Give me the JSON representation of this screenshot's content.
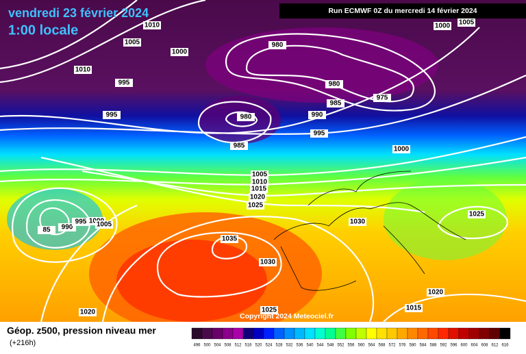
{
  "header": {
    "date": "vendredi 23 février 2024",
    "time": "1:00 locale",
    "run": "Run ECMWF 0Z du mercredi 14 février 2024"
  },
  "isobar_labels": [
    "1010",
    "1005",
    "1000",
    "1010",
    "995",
    "995",
    "980",
    "980",
    "975",
    "985",
    "980",
    "990",
    "995",
    "985",
    "1000",
    "1000",
    "1005",
    "1005",
    "1010",
    "1015",
    "1020",
    "1025",
    "85",
    "990",
    "995",
    "1000",
    "1005",
    "1035",
    "1030",
    "1030",
    "1025",
    "1020",
    "1015",
    "1020",
    "1025"
  ],
  "footer": {
    "title": "Géop. z500, pression niveau mer",
    "lead": "(+216h)",
    "copyright": "Copyright 2024 Meteociel.fr"
  },
  "scale": {
    "values": [
      496,
      500,
      504,
      508,
      512,
      516,
      520,
      524,
      528,
      532,
      536,
      540,
      544,
      548,
      552,
      556,
      560,
      564,
      568,
      572,
      576,
      580,
      584,
      588,
      592,
      596,
      600,
      604,
      608,
      612,
      616
    ],
    "colors": [
      "#2a0a2a",
      "#4a0a4a",
      "#6a006a",
      "#8a008a",
      "#aa00aa",
      "#10007a",
      "#0000c0",
      "#0020ff",
      "#0060ff",
      "#0090ff",
      "#00b8ff",
      "#00e0ff",
      "#00ffd0",
      "#00ff90",
      "#40ff40",
      "#80ff00",
      "#c0ff00",
      "#ffff00",
      "#ffe000",
      "#ffc800",
      "#ffa800",
      "#ff8800",
      "#ff6800",
      "#ff4800",
      "#ff2800",
      "#e01000",
      "#c00000",
      "#a00000",
      "#800000",
      "#600000",
      "#000000"
    ]
  }
}
